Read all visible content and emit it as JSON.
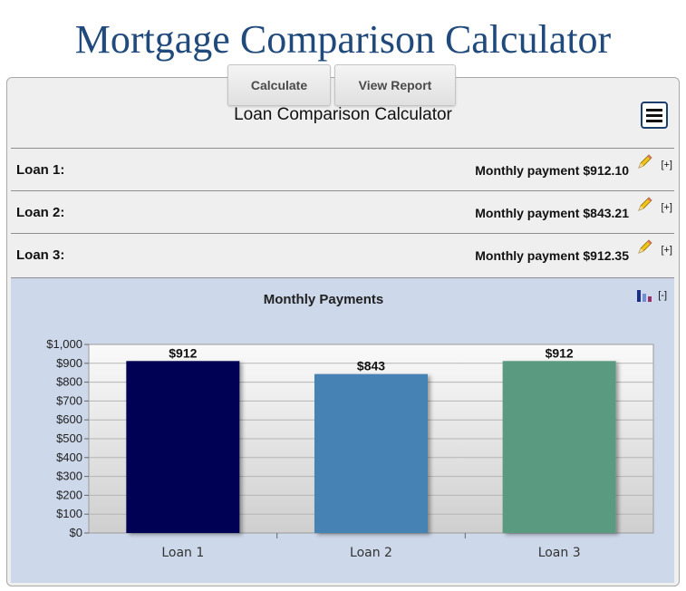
{
  "page_title": "Mortgage Comparison Calculator",
  "toolbar": {
    "calculate_label": "Calculate",
    "view_report_label": "View Report"
  },
  "calculator": {
    "title": "Loan Comparison Calculator",
    "menu_icon": "hamburger-icon"
  },
  "loans": [
    {
      "label": "Loan 1:",
      "payment_prefix": "Monthly payment",
      "payment": "$912.10",
      "edit_icon": "pencil-icon",
      "expand": "[+]"
    },
    {
      "label": "Loan 2:",
      "payment_prefix": "Monthly payment",
      "payment": "$843.21",
      "edit_icon": "pencil-icon",
      "expand": "[+]"
    },
    {
      "label": "Loan 3:",
      "payment_prefix": "Monthly payment",
      "payment": "$912.35",
      "edit_icon": "pencil-icon",
      "expand": "[+]"
    }
  ],
  "chart_panel": {
    "collapse": "[-]",
    "chart_icon": "bar-chart-icon"
  },
  "chart_data": {
    "type": "bar",
    "title": "Monthly Payments",
    "categories": [
      "Loan 1",
      "Loan 2",
      "Loan 3"
    ],
    "values": [
      912,
      843,
      912
    ],
    "value_labels": [
      "$912",
      "$843",
      "$912"
    ],
    "colors": [
      "#000055",
      "#4682b4",
      "#5a9a80"
    ],
    "ylim": [
      0,
      1000
    ],
    "yticks": [
      0,
      100,
      200,
      300,
      400,
      500,
      600,
      700,
      800,
      900,
      1000
    ],
    "ytick_labels": [
      "$0",
      "$100",
      "$200",
      "$300",
      "$400",
      "$500",
      "$600",
      "$700",
      "$800",
      "$900",
      "$1,000"
    ],
    "grid": true
  }
}
